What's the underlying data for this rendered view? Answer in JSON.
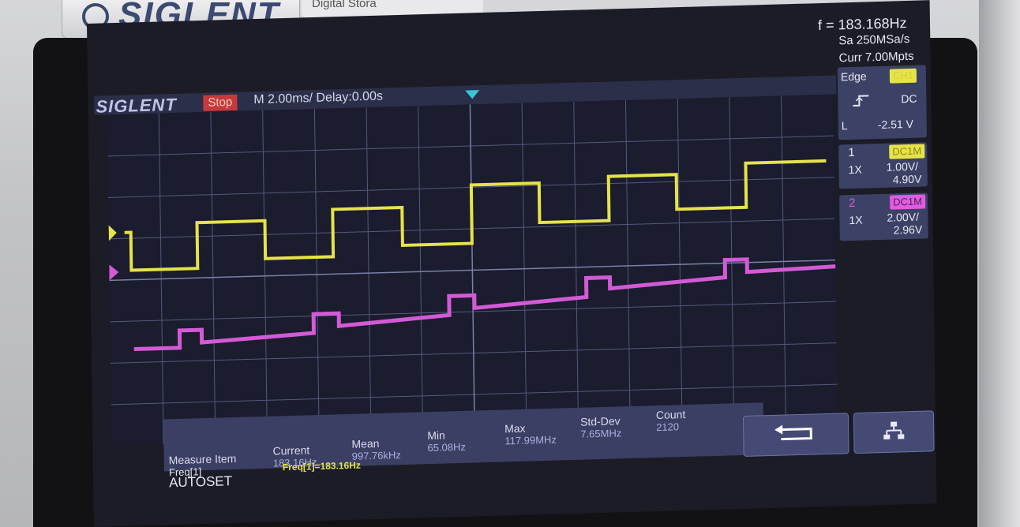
{
  "device": {
    "brand_logo": "SIGLENT",
    "model_label": "Digital Stora"
  },
  "screen": {
    "brand_label": "SIGLENT",
    "run_state": "Stop",
    "timebase": "M 2.00ms/ Delay:0.00s",
    "frequency_counter": "f = 183.168Hz",
    "sample_rate": "Sa 250MSa/s",
    "memory_depth": "Curr 7.00Mpts"
  },
  "trigger": {
    "type": "Edge",
    "source": "CH1",
    "slope_icon": "rising-edge-icon",
    "coupling": "DC",
    "level_label": "L",
    "level": "-2.51 V"
  },
  "channels": [
    {
      "number": "1",
      "coupling": "DC1M",
      "probe": "1X",
      "scale": "1.00V/",
      "offset": "4.90V",
      "color": "#e6e34a"
    },
    {
      "number": "2",
      "coupling": "DC1M",
      "probe": "1X",
      "scale": "2.00V/",
      "offset": "2.96V",
      "color": "#e05ce0"
    }
  ],
  "measurement": {
    "headers": {
      "item": "Measure Item",
      "current": "Current",
      "mean": "Mean",
      "min": "Min",
      "max": "Max",
      "std_dev": "Std-Dev",
      "count": "Count"
    },
    "row": {
      "item": "Freq[1]",
      "current": "183.16Hz",
      "mean": "997.76kHz",
      "min": "65.08Hz",
      "max": "117.99MHz",
      "std_dev": "7.65MHz",
      "count": "2120"
    },
    "readout": "Freq[1]=183.16Hz"
  },
  "softkeys": {
    "autoset": "AUTOSET",
    "back_icon": "return-arrow-icon",
    "network_icon": "network-icon"
  }
}
